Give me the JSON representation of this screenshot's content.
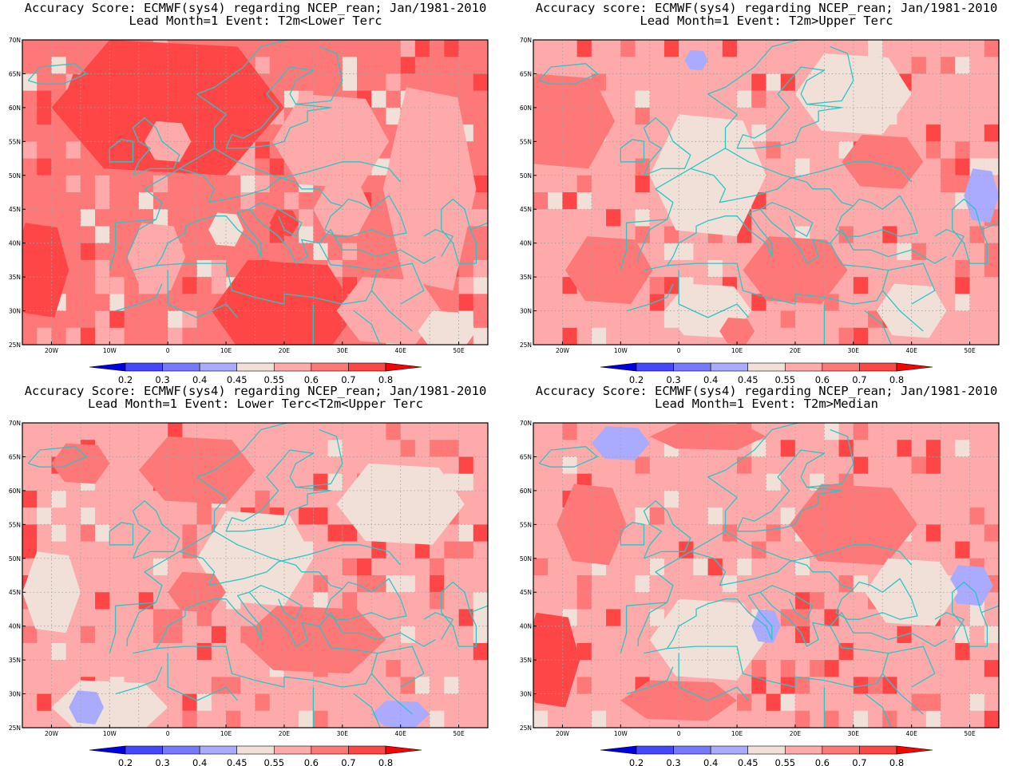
{
  "panels": [
    {
      "title_line1": "Accuracy Score: ECMWF(sys4) regarding NCEP_rean; Jan/1981-2010",
      "title_line2": "Lead Month=1 Event: T2m<Lower Terc",
      "background_class": "0.7",
      "patches": [
        {
          "lon": -22,
          "lat": 36,
          "w": 10,
          "h": 14,
          "c": "0.8"
        },
        {
          "lon": -15,
          "lat": 62,
          "w": 5,
          "h": 6,
          "c": "0.8"
        },
        {
          "lon": 0,
          "lat": 60,
          "w": 40,
          "h": 20,
          "c": "0.8"
        },
        {
          "lon": 20,
          "lat": 30,
          "w": 25,
          "h": 15,
          "c": "0.8"
        },
        {
          "lon": 28,
          "lat": 55,
          "w": 20,
          "h": 14,
          "c": "0.6"
        },
        {
          "lon": 45,
          "lat": 48,
          "w": 16,
          "h": 30,
          "c": "0.6"
        },
        {
          "lon": 0,
          "lat": 55,
          "w": 8,
          "h": 6,
          "c": "0.6"
        },
        {
          "lon": -2,
          "lat": 38,
          "w": 10,
          "h": 10,
          "c": "0.6"
        },
        {
          "lon": 38,
          "lat": 30,
          "w": 18,
          "h": 10,
          "c": "0.6"
        },
        {
          "lon": 48,
          "lat": 27,
          "w": 10,
          "h": 6,
          "c": "0.55"
        },
        {
          "lon": 30,
          "lat": 45,
          "w": 10,
          "h": 8,
          "c": "0.6"
        },
        {
          "lon": 10,
          "lat": 42,
          "w": 6,
          "h": 5,
          "c": "0.55"
        },
        {
          "lon": 20,
          "lat": 43,
          "w": 5,
          "h": 4,
          "c": "0.8"
        }
      ]
    },
    {
      "title_line1": "Accuracy score: ECMWF(sys4) regarding NCEP_rean; Jan/1981-2010",
      "title_line2": "Lead Month=1 Event: T2m>Upper Terc",
      "background_class": "0.6",
      "patches": [
        {
          "lon": -20,
          "lat": 58,
          "w": 18,
          "h": 14,
          "c": "0.7"
        },
        {
          "lon": -12,
          "lat": 36,
          "w": 15,
          "h": 10,
          "c": "0.7"
        },
        {
          "lon": 5,
          "lat": 50,
          "w": 20,
          "h": 18,
          "c": "0.55"
        },
        {
          "lon": 30,
          "lat": 62,
          "w": 20,
          "h": 12,
          "c": "0.55"
        },
        {
          "lon": 20,
          "lat": 36,
          "w": 18,
          "h": 10,
          "c": "0.7"
        },
        {
          "lon": 52,
          "lat": 47,
          "w": 6,
          "h": 8,
          "c": "0.4"
        },
        {
          "lon": 5,
          "lat": 30,
          "w": 15,
          "h": 8,
          "c": "0.55"
        },
        {
          "lon": 40,
          "lat": 30,
          "w": 12,
          "h": 8,
          "c": "0.55"
        },
        {
          "lon": 35,
          "lat": 52,
          "w": 14,
          "h": 8,
          "c": "0.7"
        },
        {
          "lon": 3,
          "lat": 67,
          "w": 4,
          "h": 3,
          "c": "0.4"
        },
        {
          "lon": 10,
          "lat": 27,
          "w": 6,
          "h": 4,
          "c": "0.7"
        }
      ]
    },
    {
      "title_line1": "Accuracy Score: ECMWF(sys4) regarding NCEP_rean; Jan/1981-2010",
      "title_line2": "Lead Month=1 Event: Lower Terc<T2m<Upper Terc",
      "background_class": "0.6",
      "patches": [
        {
          "lon": 5,
          "lat": 63,
          "w": 20,
          "h": 10,
          "c": "0.7"
        },
        {
          "lon": 15,
          "lat": 50,
          "w": 20,
          "h": 14,
          "c": "0.55"
        },
        {
          "lon": 40,
          "lat": 58,
          "w": 22,
          "h": 12,
          "c": "0.55"
        },
        {
          "lon": 25,
          "lat": 38,
          "w": 25,
          "h": 10,
          "c": "0.7"
        },
        {
          "lon": -10,
          "lat": 28,
          "w": 20,
          "h": 8,
          "c": "0.55"
        },
        {
          "lon": -20,
          "lat": 45,
          "w": 10,
          "h": 12,
          "c": "0.55"
        },
        {
          "lon": -14,
          "lat": 28,
          "w": 6,
          "h": 5,
          "c": "0.4"
        },
        {
          "lon": 40,
          "lat": 27,
          "w": 10,
          "h": 4,
          "c": "0.4"
        },
        {
          "lon": -15,
          "lat": 64,
          "w": 10,
          "h": 6,
          "c": "0.7"
        },
        {
          "lon": 5,
          "lat": 45,
          "w": 10,
          "h": 6,
          "c": "0.7"
        }
      ]
    },
    {
      "title_line1": "Accuracy Score: ECMWF(sys4) regarding NCEP_rean; Jan/1981-2010",
      "title_line2": "Lead Month=1 Event: T2m>Median",
      "background_class": "0.6",
      "patches": [
        {
          "lon": -22,
          "lat": 35,
          "w": 10,
          "h": 14,
          "c": "0.8"
        },
        {
          "lon": 0,
          "lat": 29,
          "w": 20,
          "h": 6,
          "c": "0.7"
        },
        {
          "lon": 5,
          "lat": 38,
          "w": 20,
          "h": 12,
          "c": "0.55"
        },
        {
          "lon": 30,
          "lat": 55,
          "w": 22,
          "h": 12,
          "c": "0.7"
        },
        {
          "lon": -15,
          "lat": 55,
          "w": 12,
          "h": 12,
          "c": "0.7"
        },
        {
          "lon": -10,
          "lat": 67,
          "w": 10,
          "h": 5,
          "c": "0.45"
        },
        {
          "lon": 15,
          "lat": 40,
          "w": 5,
          "h": 5,
          "c": "0.4"
        },
        {
          "lon": 50,
          "lat": 46,
          "w": 8,
          "h": 6,
          "c": "0.4"
        },
        {
          "lon": 40,
          "lat": 45,
          "w": 16,
          "h": 10,
          "c": "0.55"
        },
        {
          "lon": 5,
          "lat": 68,
          "w": 20,
          "h": 4,
          "c": "0.7"
        }
      ]
    }
  ],
  "lat_labels": [
    "70N",
    "65N",
    "60N",
    "55N",
    "50N",
    "45N",
    "40N",
    "35N",
    "30N",
    "25N"
  ],
  "lon_labels": [
    "20W",
    "10W",
    "0",
    "10E",
    "20E",
    "30E",
    "40E",
    "50E"
  ],
  "colorbar": {
    "labels": [
      "0.2",
      "0.3",
      "0.4",
      "0.45",
      "0.55",
      "0.6",
      "0.7",
      "0.8"
    ],
    "colors": [
      "#0000e6",
      "#4646ff",
      "#7878ff",
      "#aaaaff",
      "#f0e0d8",
      "#ffaaaa",
      "#ff7878",
      "#ff4646",
      "#ff0000"
    ]
  },
  "class_colors": {
    "0.4": "#aaaaff",
    "0.45": "#aaaaff",
    "0.55": "#f0e0d8",
    "0.6": "#ffaaaa",
    "0.7": "#ff7878",
    "0.8": "#ff4646"
  },
  "colors": {
    "coastline": "#2ec4c4",
    "frame": "#000000"
  }
}
